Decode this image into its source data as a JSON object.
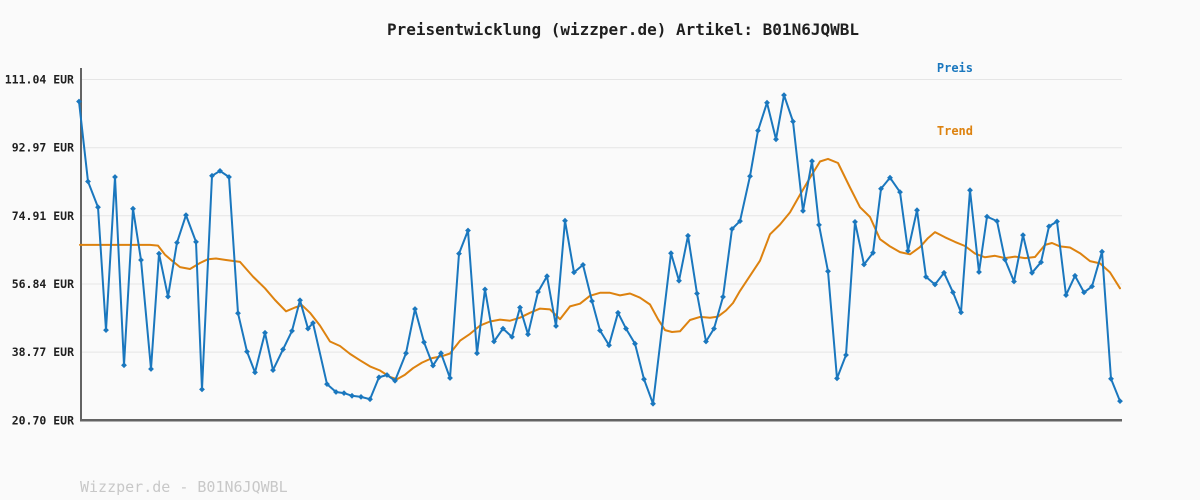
{
  "header": {
    "title": "Preisentwicklung (wizzper.de) Artikel: B01N6JQWBL"
  },
  "legend": {
    "position": "top-right",
    "items": [
      {
        "label": "Preis",
        "color": "#1a77be"
      },
      {
        "label": "Trend",
        "color": "#dd820f"
      }
    ]
  },
  "footer": {
    "text": "Wizzper.de - B01N6JQWBL"
  },
  "colors": {
    "background": "#fafafa",
    "grid": "#e5e5e5",
    "axis": "#636363",
    "title_text": "#1f1f1f",
    "tick_text": "#1f1f1f",
    "footer_text": "#c8c8c8",
    "price_line": "#1a77be",
    "trend_line": "#dd820f"
  },
  "chart_data": {
    "type": "line",
    "title": "Preisentwicklung (wizzper.de) Artikel: B01N6JQWBL",
    "xlabel": "",
    "ylabel": "EUR",
    "ylim": [
      20.7,
      111.04
    ],
    "grid": "horizontal",
    "legend_position": "top-right",
    "x_ticks": [],
    "y_ticks": [
      {
        "value": 111.04,
        "label": "111.04 EUR"
      },
      {
        "value": 92.97,
        "label": "92.97 EUR"
      },
      {
        "value": 74.91,
        "label": "74.91 EUR"
      },
      {
        "value": 56.84,
        "label": "56.84 EUR"
      },
      {
        "value": 38.77,
        "label": "38.77 EUR"
      },
      {
        "value": 20.7,
        "label": "20.70 EUR"
      }
    ],
    "note": "x axis has no visible labels; points stored as [x_position_px, price_eur]",
    "series": [
      {
        "name": "Trend",
        "color": "#dd820f",
        "markers": false,
        "points": [
          [
            80,
            67.2
          ],
          [
            90,
            67.2
          ],
          [
            100,
            67.2
          ],
          [
            110,
            67.2
          ],
          [
            120,
            67.2
          ],
          [
            130,
            67.2
          ],
          [
            140,
            67.2
          ],
          [
            150,
            67.2
          ],
          [
            158,
            67.0
          ],
          [
            165,
            64.6
          ],
          [
            172,
            63.0
          ],
          [
            180,
            61.3
          ],
          [
            190,
            60.8
          ],
          [
            200,
            62.4
          ],
          [
            208,
            63.4
          ],
          [
            216,
            63.6
          ],
          [
            226,
            63.2
          ],
          [
            240,
            62.7
          ],
          [
            253,
            58.8
          ],
          [
            265,
            55.7
          ],
          [
            275,
            52.6
          ],
          [
            286,
            49.6
          ],
          [
            295,
            50.6
          ],
          [
            302,
            51.2
          ],
          [
            310,
            49.2
          ],
          [
            320,
            45.8
          ],
          [
            330,
            41.6
          ],
          [
            340,
            40.4
          ],
          [
            350,
            38.3
          ],
          [
            360,
            36.6
          ],
          [
            370,
            35.0
          ],
          [
            380,
            33.9
          ],
          [
            390,
            32.2
          ],
          [
            397,
            31.6
          ],
          [
            405,
            32.8
          ],
          [
            413,
            34.5
          ],
          [
            422,
            36.0
          ],
          [
            432,
            37.2
          ],
          [
            442,
            37.7
          ],
          [
            450,
            38.4
          ],
          [
            460,
            41.8
          ],
          [
            470,
            43.6
          ],
          [
            480,
            45.8
          ],
          [
            490,
            46.9
          ],
          [
            500,
            47.4
          ],
          [
            510,
            47.1
          ],
          [
            520,
            47.9
          ],
          [
            530,
            49.2
          ],
          [
            540,
            50.3
          ],
          [
            550,
            50.1
          ],
          [
            560,
            47.5
          ],
          [
            570,
            50.9
          ],
          [
            580,
            51.6
          ],
          [
            590,
            53.7
          ],
          [
            600,
            54.5
          ],
          [
            610,
            54.5
          ],
          [
            620,
            53.8
          ],
          [
            630,
            54.3
          ],
          [
            640,
            53.2
          ],
          [
            650,
            51.4
          ],
          [
            658,
            47.5
          ],
          [
            665,
            44.6
          ],
          [
            672,
            44.1
          ],
          [
            680,
            44.3
          ],
          [
            690,
            47.3
          ],
          [
            700,
            48.1
          ],
          [
            710,
            47.9
          ],
          [
            718,
            48.2
          ],
          [
            726,
            49.8
          ],
          [
            733,
            51.8
          ],
          [
            740,
            55.0
          ],
          [
            750,
            59.0
          ],
          [
            760,
            63.0
          ],
          [
            770,
            70.0
          ],
          [
            780,
            72.6
          ],
          [
            790,
            75.8
          ],
          [
            800,
            80.5
          ],
          [
            810,
            85.0
          ],
          [
            820,
            89.3
          ],
          [
            828,
            90.0
          ],
          [
            838,
            88.9
          ],
          [
            850,
            82.4
          ],
          [
            860,
            77.2
          ],
          [
            870,
            74.6
          ],
          [
            880,
            68.7
          ],
          [
            890,
            66.8
          ],
          [
            900,
            65.3
          ],
          [
            910,
            64.7
          ],
          [
            920,
            66.6
          ],
          [
            928,
            69.0
          ],
          [
            935,
            70.6
          ],
          [
            945,
            69.2
          ],
          [
            955,
            68.0
          ],
          [
            965,
            66.9
          ],
          [
            975,
            64.9
          ],
          [
            985,
            63.9
          ],
          [
            995,
            64.3
          ],
          [
            1005,
            63.7
          ],
          [
            1015,
            64.1
          ],
          [
            1025,
            63.7
          ],
          [
            1035,
            64.0
          ],
          [
            1045,
            67.2
          ],
          [
            1052,
            67.7
          ],
          [
            1060,
            66.8
          ],
          [
            1070,
            66.5
          ],
          [
            1080,
            65.0
          ],
          [
            1090,
            62.9
          ],
          [
            1100,
            62.3
          ],
          [
            1110,
            59.9
          ],
          [
            1120,
            55.7
          ]
        ]
      },
      {
        "name": "Preis",
        "color": "#1a77be",
        "markers": true,
        "points": [
          [
            79,
            105.2
          ],
          [
            88,
            84.0
          ],
          [
            98,
            77.2
          ],
          [
            106,
            44.6
          ],
          [
            115,
            85.2
          ],
          [
            124,
            35.3
          ],
          [
            133,
            76.8
          ],
          [
            141,
            63.2
          ],
          [
            151,
            34.3
          ],
          [
            159,
            64.9
          ],
          [
            168,
            53.5
          ],
          [
            177,
            67.8
          ],
          [
            186,
            75.1
          ],
          [
            196,
            68.0
          ],
          [
            202,
            28.9
          ],
          [
            212,
            85.5
          ],
          [
            220,
            86.8
          ],
          [
            229,
            85.2
          ],
          [
            238,
            49.1
          ],
          [
            247,
            38.9
          ],
          [
            255,
            33.4
          ],
          [
            265,
            43.9
          ],
          [
            273,
            34.0
          ],
          [
            283,
            39.5
          ],
          [
            292,
            44.4
          ],
          [
            300,
            52.5
          ],
          [
            308,
            45.0
          ],
          [
            313,
            46.5
          ],
          [
            327,
            30.3
          ],
          [
            336,
            28.2
          ],
          [
            344,
            27.9
          ],
          [
            352,
            27.2
          ],
          [
            361,
            26.9
          ],
          [
            370,
            26.3
          ],
          [
            379,
            32.1
          ],
          [
            387,
            32.7
          ],
          [
            395,
            31.2
          ],
          [
            406,
            38.5
          ],
          [
            415,
            50.2
          ],
          [
            424,
            41.4
          ],
          [
            433,
            35.2
          ],
          [
            441,
            38.5
          ],
          [
            450,
            31.9
          ],
          [
            459,
            64.9
          ],
          [
            468,
            71.0
          ],
          [
            477,
            38.5
          ],
          [
            485,
            55.4
          ],
          [
            494,
            41.6
          ],
          [
            503,
            45.0
          ],
          [
            512,
            42.8
          ],
          [
            520,
            50.6
          ],
          [
            528,
            43.5
          ],
          [
            538,
            54.7
          ],
          [
            547,
            58.9
          ],
          [
            556,
            45.7
          ],
          [
            565,
            73.6
          ],
          [
            574,
            59.9
          ],
          [
            583,
            61.9
          ],
          [
            592,
            52.3
          ],
          [
            600,
            44.5
          ],
          [
            609,
            40.6
          ],
          [
            618,
            49.2
          ],
          [
            626,
            45.0
          ],
          [
            635,
            41.0
          ],
          [
            644,
            31.6
          ],
          [
            653,
            25.1
          ],
          [
            671,
            65.0
          ],
          [
            679,
            57.7
          ],
          [
            688,
            69.6
          ],
          [
            697,
            54.3
          ],
          [
            706,
            41.6
          ],
          [
            714,
            45.0
          ],
          [
            723,
            53.4
          ],
          [
            732,
            71.4
          ],
          [
            740,
            73.5
          ],
          [
            750,
            85.4
          ],
          [
            758,
            97.5
          ],
          [
            767,
            104.9
          ],
          [
            776,
            95.2
          ],
          [
            784,
            106.9
          ],
          [
            793,
            99.9
          ],
          [
            803,
            76.2
          ],
          [
            812,
            89.4
          ],
          [
            819,
            72.5
          ],
          [
            828,
            60.2
          ],
          [
            837,
            31.8
          ],
          [
            846,
            38.0
          ],
          [
            855,
            73.3
          ],
          [
            864,
            62.0
          ],
          [
            873,
            65.1
          ],
          [
            881,
            82.1
          ],
          [
            890,
            85.0
          ],
          [
            900,
            81.2
          ],
          [
            908,
            65.6
          ],
          [
            917,
            76.4
          ],
          [
            926,
            58.7
          ],
          [
            935,
            56.7
          ],
          [
            944,
            59.8
          ],
          [
            953,
            54.6
          ],
          [
            961,
            49.3
          ],
          [
            970,
            81.7
          ],
          [
            979,
            60.0
          ],
          [
            987,
            74.7
          ],
          [
            997,
            73.5
          ],
          [
            1005,
            63.3
          ],
          [
            1014,
            57.5
          ],
          [
            1023,
            69.8
          ],
          [
            1032,
            59.8
          ],
          [
            1041,
            62.6
          ],
          [
            1049,
            72.1
          ],
          [
            1057,
            73.4
          ],
          [
            1066,
            53.9
          ],
          [
            1075,
            59.0
          ],
          [
            1084,
            54.6
          ],
          [
            1092,
            56.2
          ],
          [
            1102,
            65.4
          ],
          [
            1111,
            31.7
          ],
          [
            1120,
            25.8
          ]
        ]
      }
    ]
  }
}
